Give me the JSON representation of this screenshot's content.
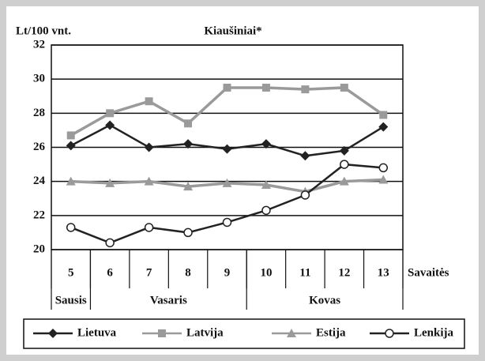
{
  "chart_data": {
    "type": "line",
    "title": "Kiaušiniai*",
    "y_label": "Lt/100 vnt.",
    "x_label": "Savaitės",
    "categories": [
      "5",
      "6",
      "7",
      "8",
      "9",
      "10",
      "11",
      "12",
      "13"
    ],
    "months": [
      {
        "name": "Sausis",
        "span": 1
      },
      {
        "name": "Vasaris",
        "span": 4
      },
      {
        "name": "Kovas",
        "span": 4
      }
    ],
    "ylim": [
      20,
      32
    ],
    "yticks": [
      20,
      22,
      24,
      26,
      28,
      30,
      32
    ],
    "grid": true,
    "legend": "bottom",
    "series": [
      {
        "name": "Lietuva",
        "color": "#222222",
        "marker": "diamond",
        "values": [
          26.1,
          27.3,
          26.0,
          26.2,
          25.9,
          26.2,
          25.5,
          25.8,
          27.2
        ]
      },
      {
        "name": "Latvija",
        "color": "#9a9a9a",
        "marker": "square",
        "values": [
          26.7,
          28.0,
          28.7,
          27.4,
          29.5,
          29.5,
          29.4,
          29.5,
          27.9
        ]
      },
      {
        "name": "Estija",
        "color": "#9a9a9a",
        "marker": "triangle",
        "values": [
          24.0,
          23.9,
          24.0,
          23.7,
          23.9,
          23.8,
          23.4,
          24.0,
          24.1
        ]
      },
      {
        "name": "Lenkija",
        "color": "#222222",
        "marker": "circle",
        "values": [
          21.3,
          20.4,
          21.3,
          21.0,
          21.6,
          22.3,
          23.2,
          25.0,
          24.8
        ]
      }
    ]
  }
}
